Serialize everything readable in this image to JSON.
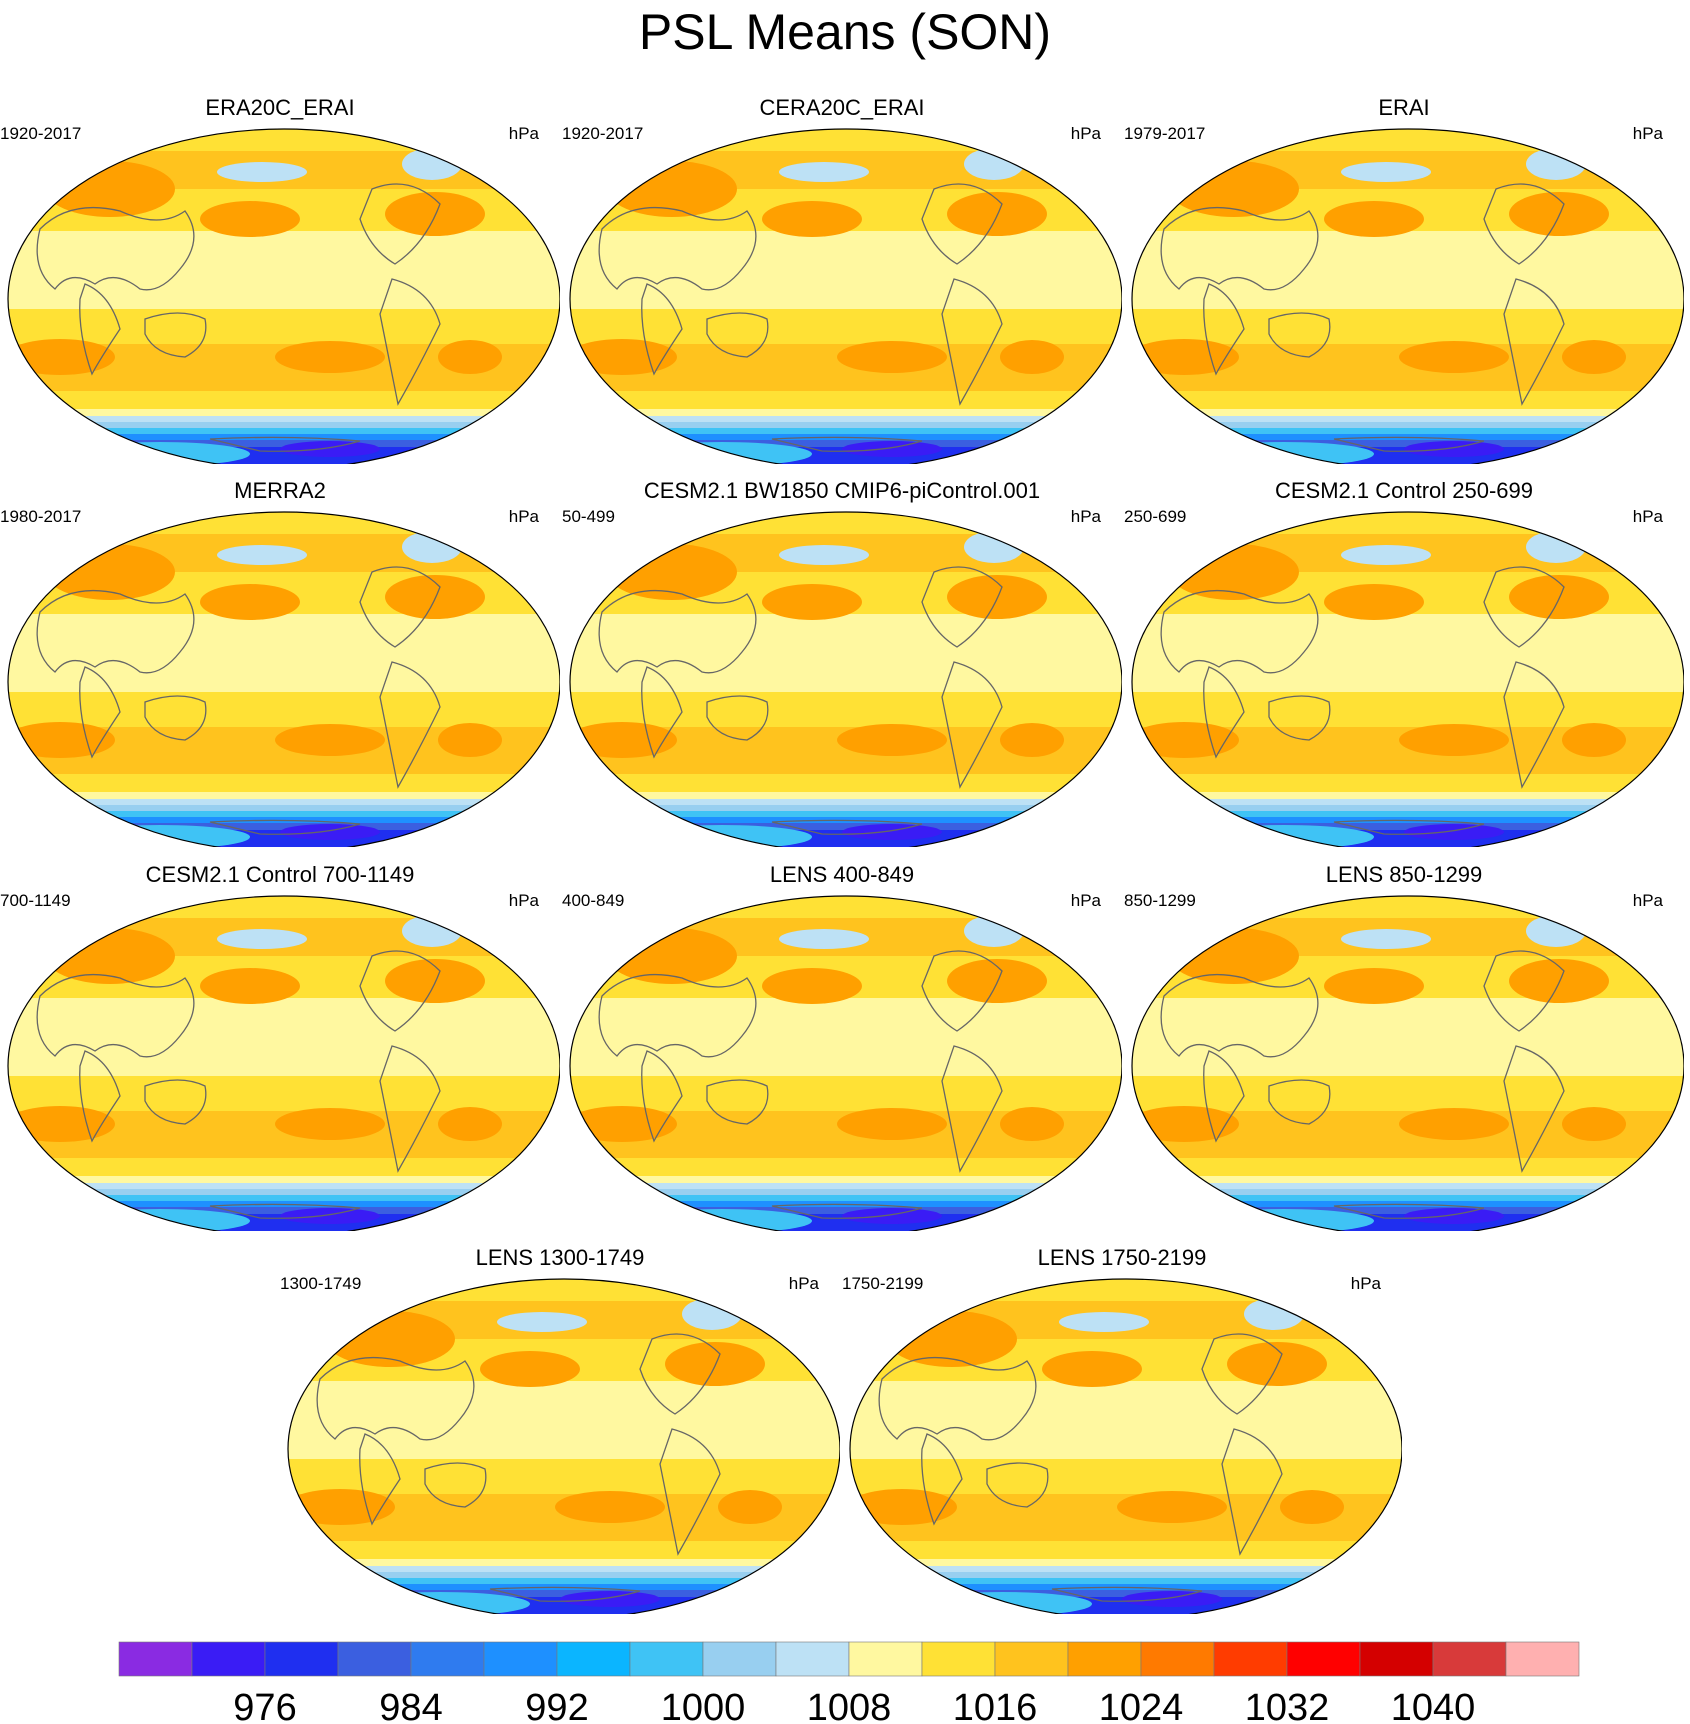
{
  "title": "PSL Means (SON)",
  "panels": [
    {
      "title": "ERA20C_ERAI",
      "years": "1920-2017",
      "units": "hPa"
    },
    {
      "title": "CERA20C_ERAI",
      "years": "1920-2017",
      "units": "hPa"
    },
    {
      "title": "ERAI",
      "years": "1979-2017",
      "units": "hPa"
    },
    {
      "title": "MERRA2",
      "years": "1980-2017",
      "units": "hPa"
    },
    {
      "title": "CESM2.1 BW1850 CMIP6-piControl.001",
      "years": "50-499",
      "units": "hPa"
    },
    {
      "title": "CESM2.1 Control 250-699",
      "years": "250-699",
      "units": "hPa"
    },
    {
      "title": "CESM2.1 Control 700-1149",
      "years": "700-1149",
      "units": "hPa"
    },
    {
      "title": "LENS 400-849",
      "years": "400-849",
      "units": "hPa"
    },
    {
      "title": "LENS 850-1299",
      "years": "850-1299",
      "units": "hPa"
    },
    {
      "title": "LENS 1300-1749",
      "years": "1300-1749",
      "units": "hPa"
    },
    {
      "title": "LENS 1750-2199",
      "years": "1750-2199",
      "units": "hPa"
    }
  ],
  "colorbar": {
    "colors": [
      "#8a2be2",
      "#3a1cf5",
      "#1f2ff0",
      "#3b5fe0",
      "#2f7bef",
      "#1e90ff",
      "#0bb5ff",
      "#3fc3f5",
      "#98cff0",
      "#bde1f5",
      "#fff8a0",
      "#ffe135",
      "#ffc31e",
      "#ffa000",
      "#ff7a00",
      "#ff3c00",
      "#ff0000",
      "#d40000",
      "#d83a3a",
      "#ffb0b0"
    ],
    "labels": [
      "976",
      "984",
      "992",
      "1000",
      "1008",
      "1016",
      "1024",
      "1032",
      "1040"
    ]
  }
}
